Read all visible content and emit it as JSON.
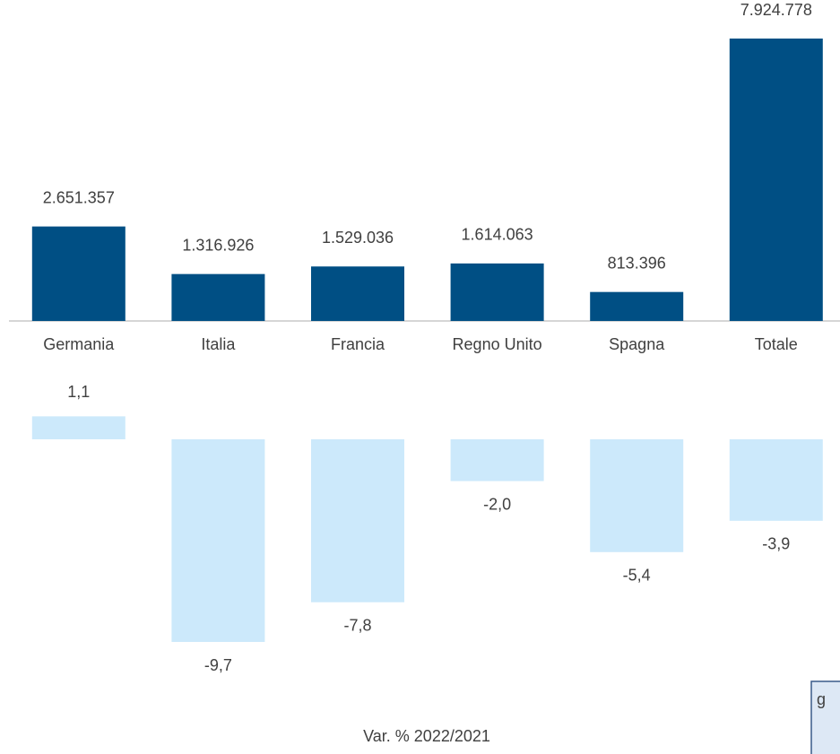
{
  "chart_data": [
    {
      "type": "bar",
      "categories": [
        "Germania",
        "Italia",
        "Francia",
        "Regno Unito",
        "Spagna",
        "Totale"
      ],
      "values": [
        2651357,
        1316926,
        1529036,
        1614063,
        813396,
        7924778
      ],
      "value_labels": [
        "2.651.357",
        "1.316.926",
        "1.529.036",
        "1.614.063",
        "813.396",
        "7.924.778"
      ],
      "color": "#004f84"
    },
    {
      "type": "bar",
      "title": "Var. %  2022/2021",
      "values": [
        1.1,
        -9.7,
        -7.8,
        -2.0,
        -5.4,
        -3.9
      ],
      "value_labels": [
        "1,1",
        "-9,7",
        "-7,8",
        "-2,0",
        "-5,4",
        "-3,9"
      ],
      "color": "#cce9fb"
    }
  ],
  "note": "g"
}
